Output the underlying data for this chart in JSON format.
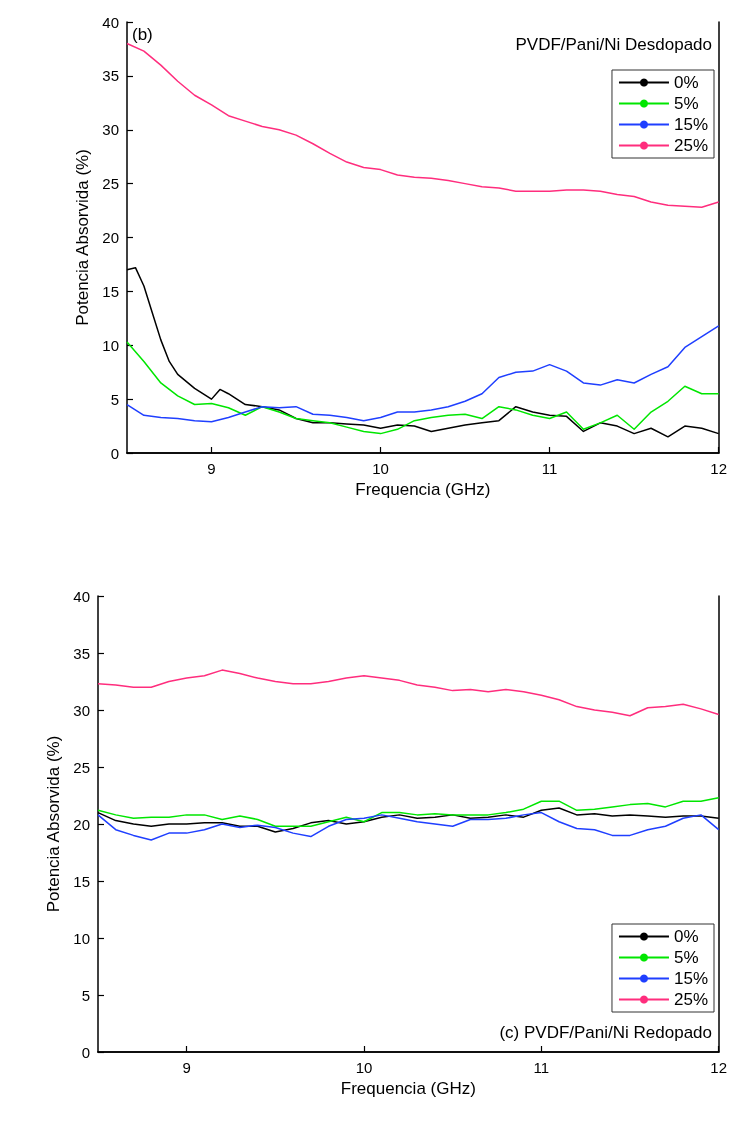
{
  "chart_data": [
    {
      "type": "line",
      "xlabel": "Frequencia (GHz)",
      "ylabel": "Potencia Absorvida (%)",
      "annotations": [
        "(b)",
        "PVDF/Pani/Ni Desdopado"
      ],
      "xlim": [
        8.5,
        12
      ],
      "xticks": [
        9,
        10,
        11,
        12
      ],
      "ylim": [
        0,
        40
      ],
      "yticks": [
        0,
        5,
        10,
        15,
        20,
        25,
        30,
        35,
        40
      ],
      "grid": false,
      "legend": "top right",
      "marker": "none",
      "line_style": "solid",
      "series": [
        {
          "name": "0%",
          "color": "#000000",
          "x": [
            8.5,
            8.55,
            8.6,
            8.65,
            8.7,
            8.75,
            8.8,
            8.9,
            9.0,
            9.05,
            9.1,
            9.2,
            9.3,
            9.4,
            9.5,
            9.6,
            9.7,
            9.8,
            9.9,
            10.0,
            10.1,
            10.2,
            10.3,
            10.4,
            10.5,
            10.6,
            10.7,
            10.8,
            10.9,
            11.0,
            11.1,
            11.2,
            11.3,
            11.4,
            11.5,
            11.6,
            11.7,
            11.8,
            11.9,
            12.0
          ],
          "values": [
            17,
            17.2,
            15.5,
            13,
            10.5,
            8.5,
            7.3,
            6,
            5,
            5.9,
            5.5,
            4.5,
            4.3,
            4,
            3.2,
            2.8,
            2.8,
            2.7,
            2.6,
            2.3,
            2.6,
            2.5,
            2,
            2.3,
            2.6,
            2.8,
            3,
            4.3,
            3.8,
            3.5,
            3.4,
            2,
            2.8,
            2.5,
            1.8,
            2.3,
            1.5,
            2.5,
            2.3,
            1.8
          ]
        },
        {
          "name": "5%",
          "color": "#00e600",
          "x": [
            8.5,
            8.6,
            8.7,
            8.8,
            8.9,
            9.0,
            9.1,
            9.2,
            9.3,
            9.4,
            9.5,
            9.6,
            9.7,
            9.8,
            9.9,
            10.0,
            10.1,
            10.2,
            10.3,
            10.4,
            10.5,
            10.6,
            10.7,
            10.8,
            10.9,
            11.0,
            11.1,
            11.2,
            11.3,
            11.4,
            11.5,
            11.6,
            11.7,
            11.8,
            11.9,
            12.0
          ],
          "values": [
            10.3,
            8.5,
            6.5,
            5.3,
            4.5,
            4.6,
            4.2,
            3.5,
            4.3,
            3.8,
            3.2,
            3,
            2.8,
            2.4,
            2,
            1.8,
            2.2,
            3,
            3.3,
            3.5,
            3.6,
            3.2,
            4.3,
            4,
            3.5,
            3.2,
            3.8,
            2.2,
            2.8,
            3.5,
            2.2,
            3.8,
            4.8,
            6.2,
            5.5,
            5.5
          ]
        },
        {
          "name": "15%",
          "color": "#1f3fff",
          "x": [
            8.5,
            8.6,
            8.7,
            8.8,
            8.9,
            9.0,
            9.1,
            9.2,
            9.3,
            9.4,
            9.5,
            9.6,
            9.7,
            9.8,
            9.9,
            10.0,
            10.1,
            10.2,
            10.3,
            10.4,
            10.5,
            10.6,
            10.7,
            10.8,
            10.9,
            11.0,
            11.1,
            11.2,
            11.3,
            11.4,
            11.5,
            11.6,
            11.7,
            11.8,
            11.9,
            12.0
          ],
          "values": [
            4.5,
            3.5,
            3.3,
            3.2,
            3,
            2.9,
            3.3,
            3.8,
            4.3,
            4.2,
            4.3,
            3.6,
            3.5,
            3.3,
            3,
            3.3,
            3.8,
            3.8,
            4,
            4.3,
            4.8,
            5.5,
            7,
            7.5,
            7.6,
            8.2,
            7.6,
            6.5,
            6.3,
            6.8,
            6.5,
            7.3,
            8,
            9.8,
            10.8,
            11.8
          ]
        },
        {
          "name": "25%",
          "color": "#ff2d7d",
          "x": [
            8.5,
            8.6,
            8.7,
            8.8,
            8.9,
            9.0,
            9.1,
            9.2,
            9.3,
            9.4,
            9.5,
            9.6,
            9.7,
            9.8,
            9.9,
            10.0,
            10.1,
            10.2,
            10.3,
            10.4,
            10.5,
            10.6,
            10.7,
            10.8,
            10.9,
            11.0,
            11.1,
            11.2,
            11.3,
            11.4,
            11.5,
            11.6,
            11.7,
            11.8,
            11.9,
            12.0
          ],
          "values": [
            38,
            37.3,
            36,
            34.5,
            33.2,
            32.3,
            31.3,
            30.8,
            30.3,
            30,
            29.5,
            28.7,
            27.8,
            27,
            26.5,
            26.3,
            25.8,
            25.6,
            25.5,
            25.3,
            25,
            24.7,
            24.6,
            24.3,
            24.3,
            24.3,
            24.4,
            24.4,
            24.3,
            24,
            23.8,
            23.3,
            23,
            22.9,
            22.8,
            23.3
          ]
        }
      ]
    },
    {
      "type": "line",
      "xlabel": "Frequencia (GHz)",
      "ylabel": "Potencia Absorvida (%)",
      "annotations": [
        "(c) PVDF/Pani/Ni Redopado"
      ],
      "xlim": [
        8.5,
        12
      ],
      "xticks": [
        9,
        10,
        11,
        12
      ],
      "ylim": [
        0,
        40
      ],
      "yticks": [
        0,
        5,
        10,
        15,
        20,
        25,
        30,
        35,
        40
      ],
      "grid": false,
      "legend": "bottom right",
      "marker": "none",
      "line_style": "solid",
      "series": [
        {
          "name": "0%",
          "color": "#000000",
          "x": [
            8.5,
            8.6,
            8.7,
            8.8,
            8.9,
            9.0,
            9.1,
            9.2,
            9.3,
            9.4,
            9.5,
            9.6,
            9.7,
            9.8,
            9.9,
            10.0,
            10.1,
            10.2,
            10.3,
            10.4,
            10.5,
            10.6,
            10.7,
            10.8,
            10.9,
            11.0,
            11.1,
            11.2,
            11.3,
            11.4,
            11.5,
            11.6,
            11.7,
            11.8,
            11.9,
            12.0
          ],
          "values": [
            21,
            20.3,
            20,
            19.8,
            20,
            20,
            20.1,
            20.1,
            19.8,
            19.8,
            19.3,
            19.6,
            20.1,
            20.3,
            20,
            20.2,
            20.6,
            20.8,
            20.5,
            20.6,
            20.8,
            20.5,
            20.6,
            20.8,
            20.6,
            21.2,
            21.4,
            20.8,
            20.9,
            20.7,
            20.8,
            20.7,
            20.6,
            20.7,
            20.7,
            20.5
          ]
        },
        {
          "name": "5%",
          "color": "#00e600",
          "x": [
            8.5,
            8.6,
            8.7,
            8.8,
            8.9,
            9.0,
            9.1,
            9.2,
            9.3,
            9.4,
            9.5,
            9.6,
            9.7,
            9.8,
            9.9,
            10.0,
            10.1,
            10.2,
            10.3,
            10.4,
            10.5,
            10.6,
            10.7,
            10.8,
            10.9,
            11.0,
            11.1,
            11.2,
            11.3,
            11.4,
            11.5,
            11.6,
            11.7,
            11.8,
            11.9,
            12.0
          ],
          "values": [
            21.2,
            20.8,
            20.5,
            20.6,
            20.6,
            20.8,
            20.8,
            20.4,
            20.7,
            20.4,
            19.8,
            19.8,
            19.8,
            20.2,
            20.6,
            20.2,
            21,
            21,
            20.8,
            20.9,
            20.8,
            20.8,
            20.8,
            21,
            21.3,
            22,
            22,
            21.2,
            21.3,
            21.5,
            21.7,
            21.8,
            21.5,
            22,
            22,
            22.3
          ]
        },
        {
          "name": "15%",
          "color": "#1f3fff",
          "x": [
            8.5,
            8.6,
            8.7,
            8.8,
            8.9,
            9.0,
            9.1,
            9.2,
            9.3,
            9.4,
            9.5,
            9.6,
            9.7,
            9.8,
            9.9,
            10.0,
            10.1,
            10.2,
            10.3,
            10.4,
            10.5,
            10.6,
            10.7,
            10.8,
            10.9,
            11.0,
            11.1,
            11.2,
            11.3,
            11.4,
            11.5,
            11.6,
            11.7,
            11.8,
            11.9,
            12.0
          ],
          "values": [
            20.8,
            19.5,
            19,
            18.6,
            19.2,
            19.2,
            19.5,
            20,
            19.7,
            19.9,
            19.7,
            19.2,
            18.9,
            19.8,
            20.4,
            20.5,
            20.8,
            20.5,
            20.2,
            20,
            19.8,
            20.4,
            20.4,
            20.5,
            20.8,
            21,
            20.2,
            19.6,
            19.5,
            19,
            19,
            19.5,
            19.8,
            20.5,
            20.8,
            19.5
          ]
        },
        {
          "name": "25%",
          "color": "#ff2d7d",
          "x": [
            8.5,
            8.6,
            8.7,
            8.8,
            8.9,
            9.0,
            9.1,
            9.2,
            9.3,
            9.4,
            9.5,
            9.6,
            9.7,
            9.8,
            9.9,
            10.0,
            10.1,
            10.2,
            10.3,
            10.4,
            10.5,
            10.6,
            10.7,
            10.8,
            10.9,
            11.0,
            11.1,
            11.2,
            11.3,
            11.4,
            11.5,
            11.6,
            11.7,
            11.8,
            11.9,
            12.0
          ],
          "values": [
            32.3,
            32.2,
            32,
            32,
            32.5,
            32.8,
            33,
            33.5,
            33.2,
            32.8,
            32.5,
            32.3,
            32.3,
            32.5,
            32.8,
            33,
            32.8,
            32.6,
            32.2,
            32,
            31.7,
            31.8,
            31.6,
            31.8,
            31.6,
            31.3,
            30.9,
            30.3,
            30,
            29.8,
            29.5,
            30.2,
            30.3,
            30.5,
            30.1,
            29.6
          ]
        }
      ]
    }
  ]
}
